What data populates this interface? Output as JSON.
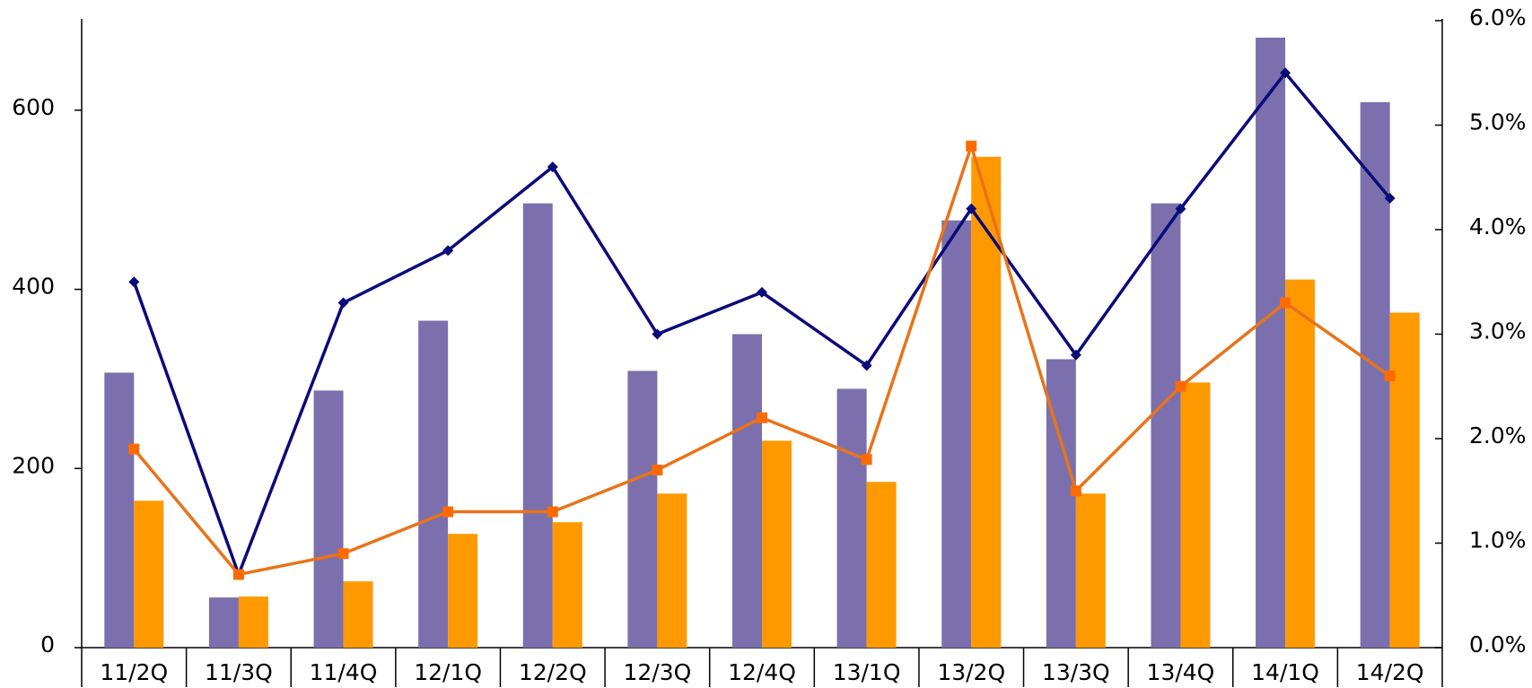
{
  "chart_data": {
    "type": "bar",
    "categories": [
      "11/2Q",
      "11/3Q",
      "11/4Q",
      "12/1Q",
      "12/2Q",
      "12/3Q",
      "12/4Q",
      "13/1Q",
      "13/2Q",
      "13/3Q",
      "13/4Q",
      "14/1Q",
      "14/2Q"
    ],
    "series": [
      {
        "color": "#7b70ad",
        "values": [
          307,
          56,
          287,
          365,
          496,
          309,
          350,
          289,
          477,
          322,
          496,
          681,
          609
        ]
      },
      {
        "color": "#ff9900",
        "values": [
          164,
          57,
          74,
          127,
          140,
          172,
          231,
          185,
          548,
          172,
          296,
          411,
          374
        ]
      },
      {
        "type": "line",
        "axis": "y2",
        "marker": "diamond",
        "color": "#0a0a7a",
        "values": [
          3.5,
          0.7,
          3.3,
          3.8,
          4.6,
          3.0,
          3.4,
          2.7,
          4.2,
          2.8,
          4.2,
          5.5,
          4.3
        ]
      },
      {
        "type": "line",
        "axis": "y2",
        "marker": "square",
        "color": "#e8731a",
        "marker_color": "#ff6a00",
        "values": [
          1.9,
          0.7,
          0.9,
          1.3,
          1.3,
          1.7,
          2.2,
          1.8,
          4.8,
          1.5,
          2.5,
          3.3,
          2.6
        ]
      }
    ],
    "ylim": [
      0,
      700
    ],
    "yticks": [
      0,
      200,
      400,
      600
    ],
    "y2lim": [
      0,
      6
    ],
    "y2ticks": [
      {
        "value": 0,
        "label": "0.0%"
      },
      {
        "value": 1,
        "label": "1.0%"
      },
      {
        "value": 2,
        "label": "2.0%"
      },
      {
        "value": 3,
        "label": "3.0%"
      },
      {
        "value": 4,
        "label": "4.0%"
      },
      {
        "value": 5,
        "label": "5.0%"
      },
      {
        "value": 6,
        "label": "6.0%"
      }
    ],
    "grid": false
  }
}
